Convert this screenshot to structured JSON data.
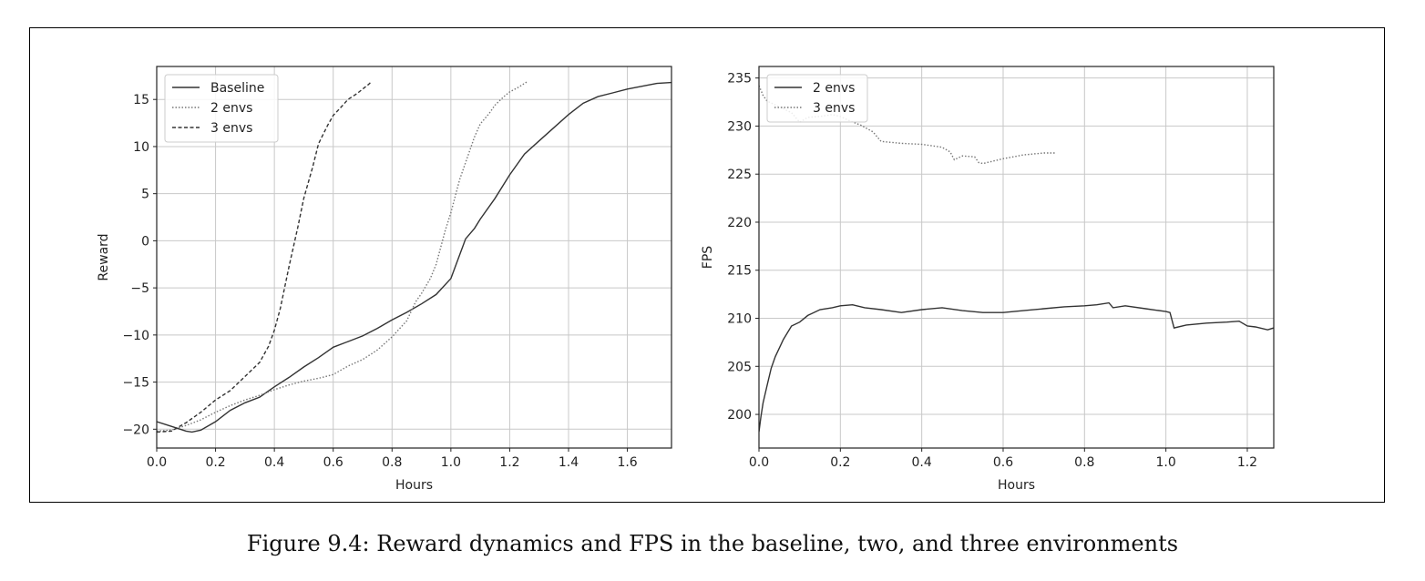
{
  "figure": {
    "caption": "Figure 9.4: Reward dynamics and FPS in the baseline, two, and three environments"
  },
  "chart_data": [
    {
      "type": "line",
      "title": "",
      "xlabel": "Hours",
      "ylabel": "Reward",
      "xlim": [
        0.0,
        1.75
      ],
      "ylim": [
        -22,
        18.5
      ],
      "xticks": [
        0.0,
        0.2,
        0.4,
        0.6,
        0.8,
        1.0,
        1.2,
        1.4,
        1.6
      ],
      "xtick_labels": [
        "0.0",
        "0.2",
        "0.4",
        "0.6",
        "0.8",
        "1.0",
        "1.2",
        "1.4",
        "1.6"
      ],
      "yticks": [
        -20,
        -15,
        -10,
        -5,
        0,
        5,
        10,
        15
      ],
      "ytick_labels": [
        "−20",
        "−15",
        "−10",
        "−5",
        "0",
        "5",
        "10",
        "15"
      ],
      "grid": true,
      "legend_position": "top-left",
      "series": [
        {
          "name": "Baseline",
          "style": "solid",
          "color": "#333333",
          "x": [
            0.0,
            0.05,
            0.1,
            0.12,
            0.15,
            0.2,
            0.25,
            0.3,
            0.35,
            0.4,
            0.45,
            0.5,
            0.55,
            0.6,
            0.65,
            0.7,
            0.75,
            0.8,
            0.85,
            0.9,
            0.95,
            1.0,
            1.03,
            1.05,
            1.08,
            1.1,
            1.15,
            1.2,
            1.25,
            1.3,
            1.35,
            1.4,
            1.45,
            1.5,
            1.55,
            1.6,
            1.65,
            1.7,
            1.75
          ],
          "y": [
            -19.2,
            -19.7,
            -20.2,
            -20.3,
            -20.1,
            -19.2,
            -18.0,
            -17.2,
            -16.6,
            -15.5,
            -14.5,
            -13.4,
            -12.4,
            -11.3,
            -10.7,
            -10.1,
            -9.3,
            -8.4,
            -7.6,
            -6.7,
            -5.7,
            -4.0,
            -1.5,
            0.2,
            1.3,
            2.3,
            4.5,
            7.0,
            9.2,
            10.6,
            12.0,
            13.4,
            14.6,
            15.3,
            15.7,
            16.1,
            16.4,
            16.7,
            16.8
          ]
        },
        {
          "name": "2 envs",
          "style": "dotted",
          "color": "#777777",
          "x": [
            0.0,
            0.05,
            0.1,
            0.15,
            0.2,
            0.25,
            0.3,
            0.35,
            0.4,
            0.45,
            0.5,
            0.55,
            0.6,
            0.65,
            0.7,
            0.75,
            0.8,
            0.85,
            0.88,
            0.9,
            0.93,
            0.95,
            0.98,
            1.0,
            1.03,
            1.05,
            1.08,
            1.1,
            1.13,
            1.15,
            1.18,
            1.2,
            1.23,
            1.26
          ],
          "y": [
            -20.2,
            -20.1,
            -19.6,
            -19.0,
            -18.2,
            -17.5,
            -16.9,
            -16.4,
            -15.8,
            -15.3,
            -14.9,
            -14.6,
            -14.2,
            -13.3,
            -12.6,
            -11.6,
            -10.2,
            -8.5,
            -6.5,
            -5.6,
            -4.0,
            -2.5,
            1.0,
            3.0,
            6.5,
            8.3,
            11.0,
            12.4,
            13.5,
            14.4,
            15.3,
            15.8,
            16.3,
            16.9
          ]
        },
        {
          "name": "3 envs",
          "style": "dashed",
          "color": "#333333",
          "x": [
            0.0,
            0.05,
            0.1,
            0.15,
            0.2,
            0.25,
            0.3,
            0.35,
            0.38,
            0.4,
            0.42,
            0.45,
            0.48,
            0.5,
            0.53,
            0.55,
            0.58,
            0.6,
            0.63,
            0.65,
            0.68,
            0.7,
            0.72,
            0.73
          ],
          "y": [
            -20.3,
            -20.2,
            -19.3,
            -18.2,
            -16.9,
            -15.9,
            -14.4,
            -12.9,
            -11.2,
            -9.5,
            -7.2,
            -2.7,
            1.5,
            4.5,
            7.8,
            10.3,
            12.2,
            13.3,
            14.3,
            15.0,
            15.6,
            16.1,
            16.6,
            16.9
          ]
        }
      ]
    },
    {
      "type": "line",
      "title": "",
      "xlabel": "Hours",
      "ylabel": "FPS",
      "xlim": [
        0.0,
        1.265
      ],
      "ylim": [
        196.5,
        236.2
      ],
      "xticks": [
        0.0,
        0.2,
        0.4,
        0.6,
        0.8,
        1.0,
        1.2
      ],
      "xtick_labels": [
        "0.0",
        "0.2",
        "0.4",
        "0.6",
        "0.8",
        "1.0",
        "1.2"
      ],
      "yticks": [
        200,
        205,
        210,
        215,
        220,
        225,
        230,
        235
      ],
      "ytick_labels": [
        "200",
        "205",
        "210",
        "215",
        "220",
        "225",
        "230",
        "235"
      ],
      "grid": true,
      "legend_position": "top-left",
      "series": [
        {
          "name": "2 envs",
          "style": "solid",
          "color": "#333333",
          "x": [
            0.0,
            0.005,
            0.01,
            0.02,
            0.03,
            0.04,
            0.06,
            0.08,
            0.1,
            0.12,
            0.15,
            0.18,
            0.2,
            0.23,
            0.26,
            0.3,
            0.35,
            0.4,
            0.45,
            0.5,
            0.55,
            0.6,
            0.65,
            0.7,
            0.75,
            0.8,
            0.83,
            0.86,
            0.87,
            0.9,
            0.95,
            1.0,
            1.01,
            1.02,
            1.05,
            1.1,
            1.15,
            1.18,
            1.2,
            1.22,
            1.25,
            1.265
          ],
          "y": [
            198.2,
            199.8,
            201.2,
            203.0,
            204.8,
            206.0,
            207.8,
            209.2,
            209.6,
            210.3,
            210.9,
            211.1,
            211.3,
            211.4,
            211.1,
            210.9,
            210.6,
            210.9,
            211.1,
            210.8,
            210.6,
            210.6,
            210.8,
            211.0,
            211.2,
            211.3,
            211.4,
            211.6,
            211.1,
            211.3,
            211.0,
            210.7,
            210.6,
            209.0,
            209.3,
            209.5,
            209.6,
            209.7,
            209.2,
            209.1,
            208.8,
            209.0
          ]
        },
        {
          "name": "3 envs",
          "style": "dotted",
          "color": "#777777",
          "x": [
            0.0,
            0.01,
            0.02,
            0.04,
            0.06,
            0.08,
            0.1,
            0.12,
            0.15,
            0.18,
            0.2,
            0.22,
            0.25,
            0.28,
            0.3,
            0.35,
            0.4,
            0.45,
            0.47,
            0.48,
            0.5,
            0.53,
            0.54,
            0.55,
            0.6,
            0.65,
            0.7,
            0.73
          ],
          "y": [
            234.2,
            233.2,
            232.6,
            232.2,
            231.8,
            231.4,
            230.4,
            230.9,
            231.0,
            231.2,
            231.0,
            230.6,
            230.1,
            229.4,
            228.4,
            228.2,
            228.1,
            227.8,
            227.3,
            226.5,
            226.9,
            226.8,
            226.2,
            226.1,
            226.6,
            227.0,
            227.2,
            227.2
          ]
        }
      ]
    }
  ]
}
